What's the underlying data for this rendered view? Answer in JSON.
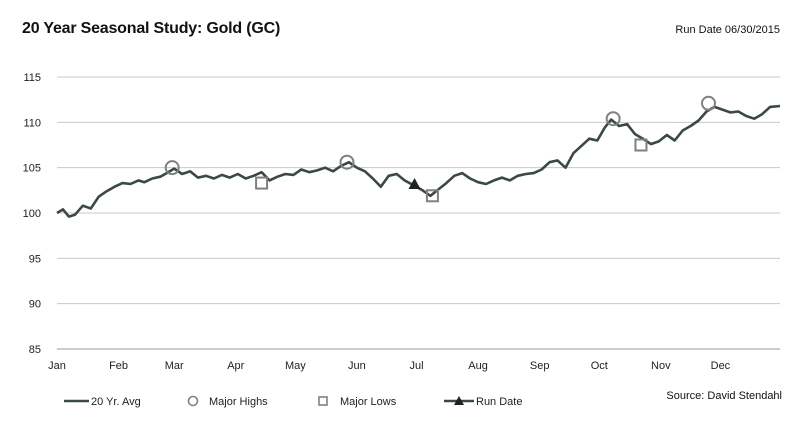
{
  "header": {
    "title": "20 Year Seasonal Study: Gold (GC)",
    "run_date": "Run Date 06/30/2015"
  },
  "footer": {
    "source": "Source:  David Stendahl"
  },
  "colors": {
    "line": "#3a4a42",
    "grid": "#c8c8c8",
    "marker": "#808080",
    "run_marker": "#222222"
  },
  "chart_data": {
    "type": "line",
    "title": "20 Year Seasonal Study: Gold (GC)",
    "xlabel": "",
    "ylabel": "",
    "ylim": [
      85,
      115
    ],
    "yticks": [
      85,
      90,
      95,
      100,
      105,
      110,
      115
    ],
    "x_ticks": [
      "Jan",
      "Feb",
      "Mar",
      "Apr",
      "May",
      "Jun",
      "Jul",
      "Aug",
      "Sep",
      "Oct",
      "Nov",
      "Dec"
    ],
    "grid": "horizontal",
    "legend_position": "bottom",
    "series": [
      {
        "name": "20 Yr. Avg",
        "points": [
          [
            "Jan 1",
            100.0
          ],
          [
            "Jan 4",
            100.4
          ],
          [
            "Jan 7",
            99.6
          ],
          [
            "Jan 10",
            99.8
          ],
          [
            "Jan 14",
            100.8
          ],
          [
            "Jan 18",
            100.5
          ],
          [
            "Jan 22",
            101.8
          ],
          [
            "Jan 26",
            102.4
          ],
          [
            "Jan 30",
            102.9
          ],
          [
            "Feb 3",
            103.3
          ],
          [
            "Feb 7",
            103.2
          ],
          [
            "Feb 11",
            103.6
          ],
          [
            "Feb 14",
            103.4
          ],
          [
            "Feb 18",
            103.8
          ],
          [
            "Feb 22",
            104.0
          ],
          [
            "Feb 26",
            104.5
          ],
          [
            "Mar 1",
            104.9
          ],
          [
            "Mar 5",
            104.3
          ],
          [
            "Mar 9",
            104.6
          ],
          [
            "Mar 13",
            103.9
          ],
          [
            "Mar 17",
            104.1
          ],
          [
            "Mar 21",
            103.8
          ],
          [
            "Mar 25",
            104.2
          ],
          [
            "Mar 29",
            103.9
          ],
          [
            "Apr 2",
            104.3
          ],
          [
            "Apr 6",
            103.8
          ],
          [
            "Apr 10",
            104.1
          ],
          [
            "Apr 14",
            104.5
          ],
          [
            "Apr 18",
            103.6
          ],
          [
            "Apr 22",
            104.0
          ],
          [
            "Apr 26",
            104.3
          ],
          [
            "Apr 30",
            104.2
          ],
          [
            "May 4",
            104.8
          ],
          [
            "May 8",
            104.5
          ],
          [
            "May 12",
            104.7
          ],
          [
            "May 16",
            105.0
          ],
          [
            "May 20",
            104.6
          ],
          [
            "May 24",
            105.2
          ],
          [
            "May 28",
            105.6
          ],
          [
            "Jun 1",
            105.0
          ],
          [
            "Jun 5",
            104.6
          ],
          [
            "Jun 9",
            103.8
          ],
          [
            "Jun 13",
            102.9
          ],
          [
            "Jun 17",
            104.1
          ],
          [
            "Jun 21",
            104.3
          ],
          [
            "Jun 25",
            103.6
          ],
          [
            "Jun 30",
            103.0
          ],
          [
            "Jul 4",
            102.5
          ],
          [
            "Jul 8",
            101.9
          ],
          [
            "Jul 12",
            102.6
          ],
          [
            "Jul 16",
            103.3
          ],
          [
            "Jul 20",
            104.1
          ],
          [
            "Jul 24",
            104.4
          ],
          [
            "Jul 28",
            103.8
          ],
          [
            "Aug 1",
            103.4
          ],
          [
            "Aug 5",
            103.2
          ],
          [
            "Aug 9",
            103.6
          ],
          [
            "Aug 13",
            103.9
          ],
          [
            "Aug 17",
            103.6
          ],
          [
            "Aug 21",
            104.1
          ],
          [
            "Aug 25",
            104.3
          ],
          [
            "Aug 29",
            104.4
          ],
          [
            "Sep 2",
            104.8
          ],
          [
            "Sep 6",
            105.6
          ],
          [
            "Sep 10",
            105.8
          ],
          [
            "Sep 14",
            105.0
          ],
          [
            "Sep 18",
            106.6
          ],
          [
            "Sep 22",
            107.4
          ],
          [
            "Sep 26",
            108.2
          ],
          [
            "Sep 30",
            108.0
          ],
          [
            "Oct 4",
            109.5
          ],
          [
            "Oct 7",
            110.3
          ],
          [
            "Oct 11",
            109.6
          ],
          [
            "Oct 15",
            109.8
          ],
          [
            "Oct 19",
            108.7
          ],
          [
            "Oct 23",
            108.2
          ],
          [
            "Oct 27",
            107.6
          ],
          [
            "Oct 31",
            107.9
          ],
          [
            "Nov 4",
            108.6
          ],
          [
            "Nov 8",
            108.0
          ],
          [
            "Nov 12",
            109.1
          ],
          [
            "Nov 16",
            109.6
          ],
          [
            "Nov 20",
            110.2
          ],
          [
            "Nov 24",
            111.2
          ],
          [
            "Nov 28",
            111.7
          ],
          [
            "Dec 2",
            111.4
          ],
          [
            "Dec 6",
            111.1
          ],
          [
            "Dec 10",
            111.2
          ],
          [
            "Dec 14",
            110.7
          ],
          [
            "Dec 18",
            110.4
          ],
          [
            "Dec 22",
            110.9
          ],
          [
            "Dec 26",
            111.7
          ],
          [
            "Dec 31",
            111.8
          ]
        ]
      }
    ],
    "markers": {
      "major_highs": [
        {
          "date": "Feb 28",
          "value": 105.0
        },
        {
          "date": "May 27",
          "value": 105.6
        },
        {
          "date": "Oct 8",
          "value": 110.4
        },
        {
          "date": "Nov 25",
          "value": 112.1
        }
      ],
      "major_lows": [
        {
          "date": "Apr 14",
          "value": 103.3
        },
        {
          "date": "Jul 9",
          "value": 101.9
        },
        {
          "date": "Oct 22",
          "value": 107.5
        }
      ],
      "run_date": [
        {
          "date": "Jun 30",
          "value": 103.2
        }
      ]
    },
    "legend": [
      {
        "key": "line",
        "label": "20 Yr. Avg"
      },
      {
        "key": "circle",
        "label": "Major Highs"
      },
      {
        "key": "square",
        "label": "Major Lows"
      },
      {
        "key": "triangle",
        "label": "Run Date"
      }
    ]
  }
}
